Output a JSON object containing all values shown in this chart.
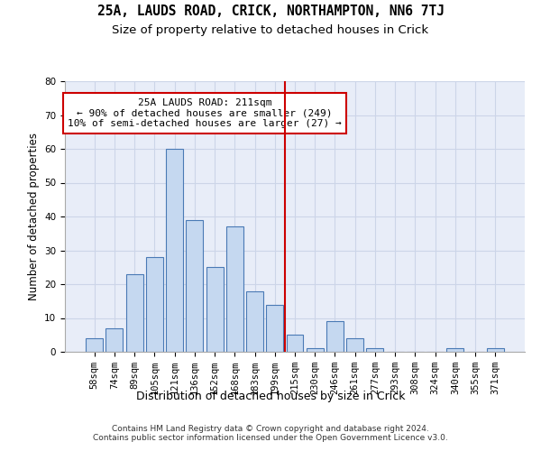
{
  "title1": "25A, LAUDS ROAD, CRICK, NORTHAMPTON, NN6 7TJ",
  "title2": "Size of property relative to detached houses in Crick",
  "xlabel": "Distribution of detached houses by size in Crick",
  "ylabel": "Number of detached properties",
  "categories": [
    "58sqm",
    "74sqm",
    "89sqm",
    "105sqm",
    "121sqm",
    "136sqm",
    "152sqm",
    "168sqm",
    "183sqm",
    "199sqm",
    "215sqm",
    "230sqm",
    "246sqm",
    "261sqm",
    "277sqm",
    "293sqm",
    "308sqm",
    "324sqm",
    "340sqm",
    "355sqm",
    "371sqm"
  ],
  "values": [
    4,
    7,
    23,
    28,
    60,
    39,
    25,
    37,
    18,
    14,
    5,
    1,
    9,
    4,
    1,
    0,
    0,
    0,
    1,
    0,
    1
  ],
  "bar_color": "#c5d8f0",
  "bar_edge_color": "#4a7ab5",
  "vline_color": "#cc0000",
  "vline_x_index": 9.5,
  "annotation_text": "25A LAUDS ROAD: 211sqm\n← 90% of detached houses are smaller (249)\n10% of semi-detached houses are larger (27) →",
  "annotation_box_edgecolor": "#cc0000",
  "ylim": [
    0,
    80
  ],
  "yticks": [
    0,
    10,
    20,
    30,
    40,
    50,
    60,
    70,
    80
  ],
  "grid_color": "#ccd5e8",
  "bg_color": "#e8edf8",
  "footer": "Contains HM Land Registry data © Crown copyright and database right 2024.\nContains public sector information licensed under the Open Government Licence v3.0.",
  "title1_fontsize": 10.5,
  "title2_fontsize": 9.5,
  "xlabel_fontsize": 9,
  "ylabel_fontsize": 8.5,
  "tick_fontsize": 7.5,
  "annotation_fontsize": 8
}
